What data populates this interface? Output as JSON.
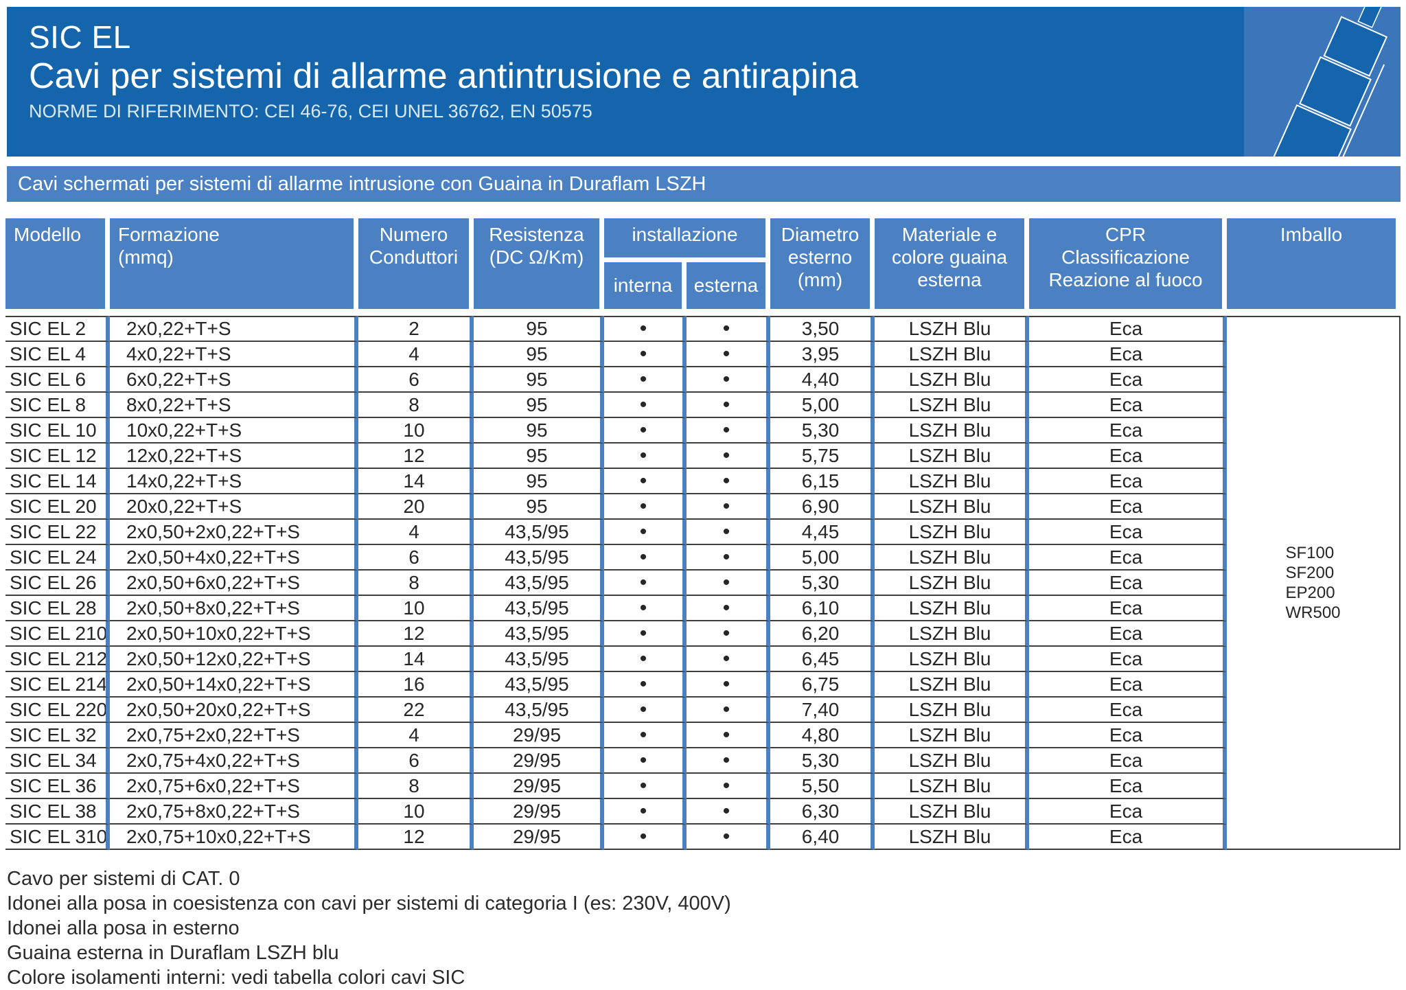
{
  "header": {
    "product_code": "SIC EL",
    "title": "Cavi per sistemi di allarme antintrusione e antirapina",
    "norms": "NORME DI RIFERIMENTO: CEI 46-76, CEI UNEL 36762, EN 50575",
    "logo_icon": "cable-icon"
  },
  "banner": {
    "text": "Cavi schermati per sistemi di allarme intrusione con Guaina in Duraflam LSZH"
  },
  "colors": {
    "dark_blue": "#1565ad",
    "medium_blue": "#4b80c2",
    "logo_blue": "#3b76ba",
    "grid_line": "#3f3f3f"
  },
  "table": {
    "headers": {
      "modello": "Modello",
      "formazione": "Formazione\n(mmq)",
      "numero": "Numero\nConduttori",
      "resistenza": "Resistenza\n(DC Ω/Km)",
      "installazione": "installazione",
      "interna": "interna",
      "esterna": "esterna",
      "diametro": "Diametro\nesterno\n(mm)",
      "materiale": "Materiale e\ncolore guaina\nesterna",
      "cpr": "CPR\nClassificazione\nReazione al fuoco",
      "imballo": "Imballo"
    },
    "col_keys": [
      "modello",
      "formazione",
      "numero-conduttori",
      "resistenza",
      "installazione-interna",
      "installazione-esterna",
      "diametro-esterno",
      "materiale-guaina",
      "cpr-classificazione"
    ],
    "rows": [
      [
        "SIC EL 2",
        "2x0,22+T+S",
        "2",
        "95",
        "•",
        "•",
        "3,50",
        "LSZH Blu",
        "Eca"
      ],
      [
        "SIC EL 4",
        "4x0,22+T+S",
        "4",
        "95",
        "•",
        "•",
        "3,95",
        "LSZH Blu",
        "Eca"
      ],
      [
        "SIC EL 6",
        "6x0,22+T+S",
        "6",
        "95",
        "•",
        "•",
        "4,40",
        "LSZH Blu",
        "Eca"
      ],
      [
        "SIC EL 8",
        "8x0,22+T+S",
        "8",
        "95",
        "•",
        "•",
        "5,00",
        "LSZH Blu",
        "Eca"
      ],
      [
        "SIC EL 10",
        "10x0,22+T+S",
        "10",
        "95",
        "•",
        "•",
        "5,30",
        "LSZH Blu",
        "Eca"
      ],
      [
        "SIC EL 12",
        "12x0,22+T+S",
        "12",
        "95",
        "•",
        "•",
        "5,75",
        "LSZH Blu",
        "Eca"
      ],
      [
        "SIC EL 14",
        "14x0,22+T+S",
        "14",
        "95",
        "•",
        "•",
        "6,15",
        "LSZH Blu",
        "Eca"
      ],
      [
        "SIC EL 20",
        "20x0,22+T+S",
        "20",
        "95",
        "•",
        "•",
        "6,90",
        "LSZH Blu",
        "Eca"
      ],
      [
        "SIC EL 22",
        "2x0,50+2x0,22+T+S",
        "4",
        "43,5/95",
        "•",
        "•",
        "4,45",
        "LSZH Blu",
        "Eca"
      ],
      [
        "SIC EL 24",
        "2x0,50+4x0,22+T+S",
        "6",
        "43,5/95",
        "•",
        "•",
        "5,00",
        "LSZH Blu",
        "Eca"
      ],
      [
        "SIC EL 26",
        "2x0,50+6x0,22+T+S",
        "8",
        "43,5/95",
        "•",
        "•",
        "5,30",
        "LSZH Blu",
        "Eca"
      ],
      [
        "SIC EL 28",
        "2x0,50+8x0,22+T+S",
        "10",
        "43,5/95",
        "•",
        "•",
        "6,10",
        "LSZH Blu",
        "Eca"
      ],
      [
        "SIC EL 210",
        "2x0,50+10x0,22+T+S",
        "12",
        "43,5/95",
        "•",
        "•",
        "6,20",
        "LSZH Blu",
        "Eca"
      ],
      [
        "SIC EL 212",
        "2x0,50+12x0,22+T+S",
        "14",
        "43,5/95",
        "•",
        "•",
        "6,45",
        "LSZH Blu",
        "Eca"
      ],
      [
        "SIC EL 214",
        "2x0,50+14x0,22+T+S",
        "16",
        "43,5/95",
        "•",
        "•",
        "6,75",
        "LSZH Blu",
        "Eca"
      ],
      [
        "SIC EL 220",
        "2x0,50+20x0,22+T+S",
        "22",
        "43,5/95",
        "•",
        "•",
        "7,40",
        "LSZH Blu",
        "Eca"
      ],
      [
        "SIC EL 32",
        "2x0,75+2x0,22+T+S",
        "4",
        "29/95",
        "•",
        "•",
        "4,80",
        "LSZH Blu",
        "Eca"
      ],
      [
        "SIC EL 34",
        "2x0,75+4x0,22+T+S",
        "6",
        "29/95",
        "•",
        "•",
        "5,30",
        "LSZH Blu",
        "Eca"
      ],
      [
        "SIC EL 36",
        "2x0,75+6x0,22+T+S",
        "8",
        "29/95",
        "•",
        "•",
        "5,50",
        "LSZH Blu",
        "Eca"
      ],
      [
        "SIC EL 38",
        "2x0,75+8x0,22+T+S",
        "10",
        "29/95",
        "•",
        "•",
        "6,30",
        "LSZH Blu",
        "Eca"
      ],
      [
        "SIC EL 310",
        "2x0,75+10x0,22+T+S",
        "12",
        "29/95",
        "•",
        "•",
        "6,40",
        "LSZH Blu",
        "Eca"
      ]
    ],
    "imballo_values": [
      "SF100",
      "SF200",
      "EP200",
      "WR500"
    ]
  },
  "footer": {
    "notes": [
      "Cavo per sistemi di CAT. 0",
      "Idonei alla posa in coesistenza con cavi per sistemi di categoria I (es: 230V, 400V)",
      "Idonei alla posa in esterno",
      "Guaina esterna in Duraflam LSZH blu",
      "Colore isolamenti interni: vedi tabella colori cavi SIC"
    ]
  }
}
